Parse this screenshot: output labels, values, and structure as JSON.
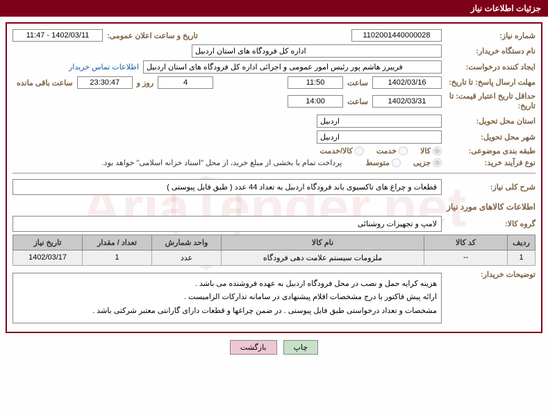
{
  "page_title": "جزئیات اطلاعات نیاز",
  "labels": {
    "need_no": "شماره نیاز:",
    "announce_dt": "تاریخ و ساعت اعلان عمومی:",
    "buyer_org": "نام دستگاه خریدار:",
    "requester": "ایجاد کننده درخواست:",
    "contact_link": "اطلاعات تماس خریدار",
    "reply_deadline": "مهلت ارسال پاسخ: تا تاریخ:",
    "hour": "ساعت",
    "day_and": "روز و",
    "remaining": "ساعت باقی مانده",
    "price_valid": "حداقل تاریخ اعتبار قیمت: تا تاریخ:",
    "delivery_prov": "استان محل تحویل:",
    "delivery_city": "شهر محل تحویل:",
    "subject_cat": "طبقه بندی موضوعی:",
    "cat_goods": "کالا",
    "cat_service": "خدمت",
    "cat_both": "کالا/خدمت",
    "purchase_type": "نوع فرآیند خرید:",
    "pt_small": "جزیی",
    "pt_medium": "متوسط",
    "treasury_note": "پرداخت تمام یا بخشی از مبلغ خرید، از محل \"اسناد خزانه اسلامی\" خواهد بود.",
    "overall_desc": "شرح کلی نیاز:",
    "goods_info": "اطلاعات کالاهای مورد نیاز",
    "goods_group": "گروه کالا:",
    "buyer_notes": "توضیحات خریدار:"
  },
  "fields": {
    "need_no": "1102001440000028",
    "announce_dt": "1402/03/11 - 11:47",
    "buyer_org": "اداره کل فرودگاه های استان اردبیل",
    "requester": "فریبرز هاشم پور رئیس امور عمومی و اجرائی اداره کل فرودگاه های استان اردبیل",
    "reply_date": "1402/03/16",
    "reply_time": "11:50",
    "days_left": "4",
    "time_left": "23:30:47",
    "price_valid_date": "1402/03/31",
    "price_valid_time": "14:00",
    "province": "اردبیل",
    "city": "اردبیل",
    "overall_desc": "قطعات و چراغ های تاکسیوی باند فرودگاه اردبیل  به تعداد 44 عدد ( طبق فایل پیوستی )",
    "goods_group": "لامپ و تجهیزات روشنائی"
  },
  "table": {
    "headers": {
      "row": "ردیف",
      "code": "کد کالا",
      "name": "نام کالا",
      "unit": "واحد شمارش",
      "qty": "تعداد / مقدار",
      "need_date": "تاریخ نیاز"
    },
    "col_widths": [
      "40px",
      "120px",
      "auto",
      "100px",
      "100px",
      "100px"
    ],
    "rows": [
      {
        "row": "1",
        "code": "--",
        "name": "ملزومات سیستم علامت دهی فرودگاه",
        "unit": "عدد",
        "qty": "1",
        "need_date": "1402/03/17"
      }
    ]
  },
  "buyer_notes": [
    "هزینه کرایه حمل و نصب در محل فرودگاه اردبیل به عهده فروشنده می باشد .",
    "ارائه پیش فاکتور با درج مشخصات اقلام پیشنهادی در سامانه تدارکات الزامیست .",
    "مشخصات و تعداد درخواستی طبق فایل پیوستی . در ضمن چراغها و قطعات دارای گارانتی معتبر شرکتی باشد ."
  ],
  "buttons": {
    "print": "چاپ",
    "back": "بازگشت"
  },
  "colors": {
    "brand": "#7f0019",
    "label": "#7d6140",
    "link": "#1a5db4",
    "th_bg": "#c9c9c9",
    "td_bg": "#efefef",
    "btn_print": "#c8e0c8",
    "btn_back": "#eec7d2"
  }
}
